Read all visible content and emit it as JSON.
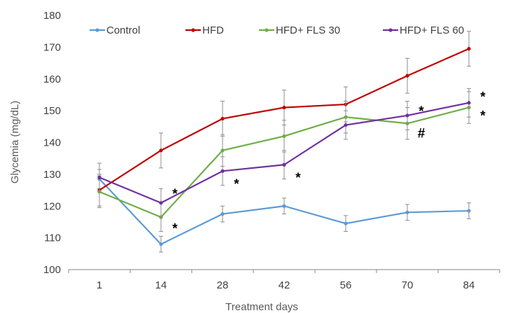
{
  "chart_data": {
    "type": "line",
    "title": "",
    "xlabel": "Treatment days",
    "ylabel": "Glycemia (mg/dL)",
    "categories": [
      "1",
      "14",
      "28",
      "42",
      "56",
      "70",
      "84"
    ],
    "ylim": [
      100,
      180
    ],
    "yticks": [
      100,
      110,
      120,
      130,
      140,
      150,
      160,
      170,
      180
    ],
    "grid": false,
    "legend_position": "top",
    "series": [
      {
        "name": "Control",
        "color": "#5b9bd5",
        "values": [
          128.5,
          108,
          117.5,
          120,
          114.5,
          118,
          118.5
        ],
        "errors": [
          3,
          2.5,
          2.5,
          2.5,
          2.5,
          2.5,
          2.5
        ]
      },
      {
        "name": "HFD",
        "color": "#c00000",
        "values": [
          125,
          137.5,
          147.5,
          151,
          152,
          161,
          169.5
        ],
        "errors": [
          5,
          5.5,
          5.5,
          5.5,
          5.5,
          5.5,
          5.5
        ]
      },
      {
        "name": "HFD+ FLS 30",
        "color": "#70ad47",
        "values": [
          124.5,
          116.5,
          137.5,
          142,
          148,
          146,
          151
        ],
        "errors": [
          5,
          4.5,
          5,
          5,
          5,
          5,
          5
        ]
      },
      {
        "name": "HFD+ FLS 60",
        "color": "#7030a0",
        "values": [
          129,
          121,
          131,
          133,
          145.5,
          148.5,
          152.5
        ],
        "errors": [
          4.5,
          4.5,
          4.5,
          4.5,
          4.5,
          4.5,
          4.5
        ]
      }
    ],
    "annotations": [
      {
        "text": "*",
        "category": "14",
        "value": 124.5
      },
      {
        "text": "*",
        "category": "14",
        "value": 113.5
      },
      {
        "text": "*",
        "category": "28",
        "value": 127.5
      },
      {
        "text": "*",
        "category": "42",
        "value": 129.5
      },
      {
        "text": "*",
        "category": "70",
        "value": 150.5
      },
      {
        "text": "#",
        "category": "70",
        "value": 143.5
      },
      {
        "text": "*",
        "category": "84",
        "value": 155
      },
      {
        "text": "*",
        "category": "84",
        "value": 149
      }
    ]
  }
}
